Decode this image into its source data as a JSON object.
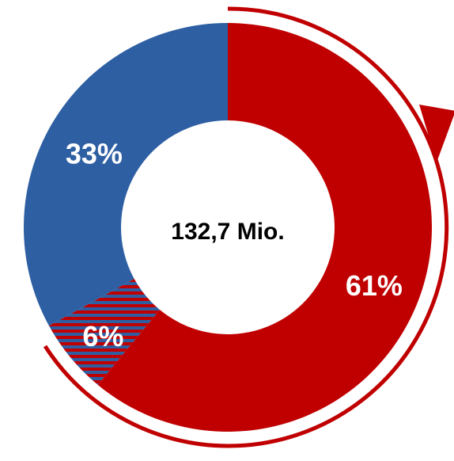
{
  "chart_data": {
    "type": "donut",
    "center_label": "132,7 Mio.",
    "values": [
      61,
      6,
      33
    ],
    "value_labels": [
      "61%",
      "6%",
      "33%"
    ],
    "colors": [
      "#c00000",
      "hatch",
      "#2e5fa3"
    ]
  }
}
